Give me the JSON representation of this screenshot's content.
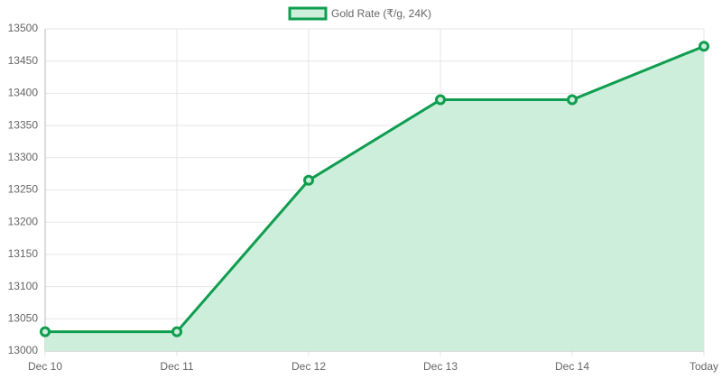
{
  "chart_data": {
    "type": "line",
    "categories": [
      "Dec 10",
      "Dec 11",
      "Dec 12",
      "Dec 13",
      "Dec 14",
      "Today"
    ],
    "series": [
      {
        "name": "Gold Rate (₹/g, 24K)",
        "color": "#0f9d4f",
        "fill_color": "#cdeedb",
        "values": [
          13030,
          13030,
          13265,
          13390,
          13390,
          13473
        ]
      }
    ],
    "ylim": [
      13000,
      13500
    ],
    "yticks": [
      13000,
      13050,
      13100,
      13150,
      13200,
      13250,
      13300,
      13350,
      13400,
      13450,
      13500
    ],
    "grid": true,
    "fill": true,
    "legend": "top"
  }
}
